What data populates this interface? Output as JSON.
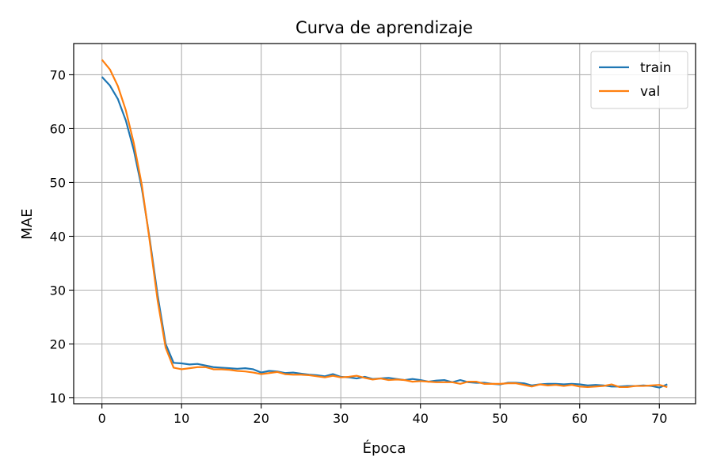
{
  "chart_data": {
    "type": "line",
    "title": "Curva de aprendizaje",
    "xlabel": "Época",
    "ylabel": "MAE",
    "xlim": [
      -3.55,
      74.55
    ],
    "ylim": [
      8.9,
      75.8
    ],
    "xticks": [
      0,
      10,
      20,
      30,
      40,
      50,
      60,
      70
    ],
    "yticks": [
      10,
      20,
      30,
      40,
      50,
      60,
      70
    ],
    "grid": true,
    "legend": {
      "position": "top-right",
      "entries": [
        "train",
        "val"
      ]
    },
    "colors": {
      "train": "#1f77b4",
      "val": "#ff7f0e"
    },
    "x": [
      0,
      1,
      2,
      3,
      4,
      5,
      6,
      7,
      8,
      9,
      10,
      11,
      12,
      13,
      14,
      15,
      16,
      17,
      18,
      19,
      20,
      21,
      22,
      23,
      24,
      25,
      26,
      27,
      28,
      29,
      30,
      31,
      32,
      33,
      34,
      35,
      36,
      37,
      38,
      39,
      40,
      41,
      42,
      43,
      44,
      45,
      46,
      47,
      48,
      49,
      50,
      51,
      52,
      53,
      54,
      55,
      56,
      57,
      58,
      59,
      60,
      61,
      62,
      63,
      64,
      65,
      66,
      67,
      68,
      69,
      70,
      71
    ],
    "series": [
      {
        "name": "train",
        "values": [
          69.6,
          68.0,
          65.5,
          61.5,
          56.0,
          49.0,
          39.5,
          29.0,
          20.0,
          16.5,
          16.4,
          16.2,
          16.3,
          16.0,
          15.7,
          15.6,
          15.5,
          15.4,
          15.5,
          15.3,
          14.7,
          15.0,
          14.9,
          14.6,
          14.7,
          14.5,
          14.3,
          14.2,
          14.0,
          14.4,
          13.9,
          13.8,
          13.6,
          13.9,
          13.5,
          13.6,
          13.7,
          13.5,
          13.3,
          13.5,
          13.3,
          13.0,
          13.2,
          13.3,
          12.9,
          13.3,
          12.9,
          12.8,
          12.8,
          12.6,
          12.5,
          12.8,
          12.8,
          12.7,
          12.3,
          12.5,
          12.6,
          12.6,
          12.5,
          12.6,
          12.5,
          12.3,
          12.4,
          12.3,
          12.1,
          12.1,
          12.2,
          12.2,
          12.3,
          12.2,
          11.9,
          12.5
        ]
      },
      {
        "name": "val",
        "values": [
          72.8,
          71.0,
          67.9,
          63.4,
          57.3,
          49.6,
          39.1,
          28.0,
          19.3,
          15.6,
          15.3,
          15.5,
          15.7,
          15.7,
          15.3,
          15.3,
          15.2,
          15.0,
          14.9,
          14.7,
          14.4,
          14.6,
          14.8,
          14.4,
          14.3,
          14.3,
          14.2,
          14.0,
          13.8,
          14.1,
          13.8,
          13.9,
          14.1,
          13.7,
          13.4,
          13.6,
          13.3,
          13.4,
          13.3,
          13.0,
          13.1,
          13.0,
          12.9,
          12.9,
          12.9,
          12.6,
          13.0,
          13.0,
          12.6,
          12.6,
          12.6,
          12.7,
          12.7,
          12.4,
          12.1,
          12.5,
          12.3,
          12.4,
          12.2,
          12.4,
          12.1,
          12.0,
          12.1,
          12.2,
          12.5,
          12.0,
          12.0,
          12.2,
          12.2,
          12.3,
          12.4,
          12.0
        ]
      }
    ]
  }
}
